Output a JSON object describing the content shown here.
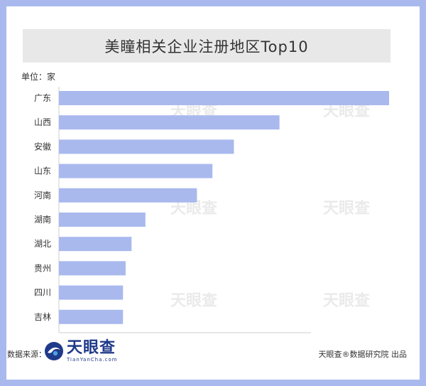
{
  "title": "美瞳相关企业注册地区Top10",
  "unit_label": "单位：家",
  "footer": {
    "source_label": "数据来源：",
    "brand_name": "天眼查",
    "brand_en": "TianYanCha.com",
    "credit": "天眼查®数据研究院 出品"
  },
  "watermark": {
    "name": "天眼查",
    "en": "TianYanCha.com"
  },
  "colors": {
    "bar": "#a9b9ee",
    "axis": "#cfcfcf",
    "frame": "#a9b9ee"
  },
  "chart_data": {
    "type": "bar",
    "orientation": "horizontal",
    "categories": [
      "广东",
      "山西",
      "安徽",
      "山东",
      "河南",
      "湖南",
      "湖北",
      "贵州",
      "四川",
      "吉林"
    ],
    "values": [
      1000,
      668,
      530,
      465,
      418,
      262,
      220,
      202,
      194,
      194
    ],
    "xlim": [
      0,
      1000
    ],
    "grid": false,
    "legend": "none"
  }
}
